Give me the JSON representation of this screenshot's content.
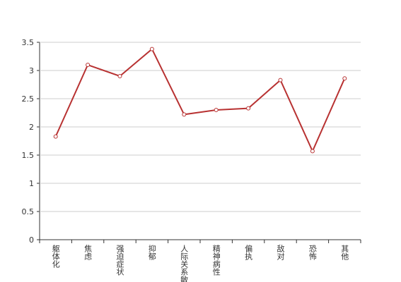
{
  "chart_data": {
    "type": "line",
    "categories": [
      "躯体化",
      "焦虑",
      "强迫症状",
      "抑郁",
      "人际关系敏感",
      "精神病性",
      "偏执",
      "敌对",
      "恐怖",
      "其他"
    ],
    "values": [
      1.83,
      3.1,
      2.9,
      3.38,
      2.22,
      2.3,
      2.33,
      2.83,
      1.57,
      2.86
    ],
    "color": "#b83232",
    "ylim": [
      0,
      3.5
    ],
    "yticks": [
      0,
      0.5,
      1,
      1.5,
      2,
      2.5,
      3,
      3.5
    ],
    "grid": true
  }
}
